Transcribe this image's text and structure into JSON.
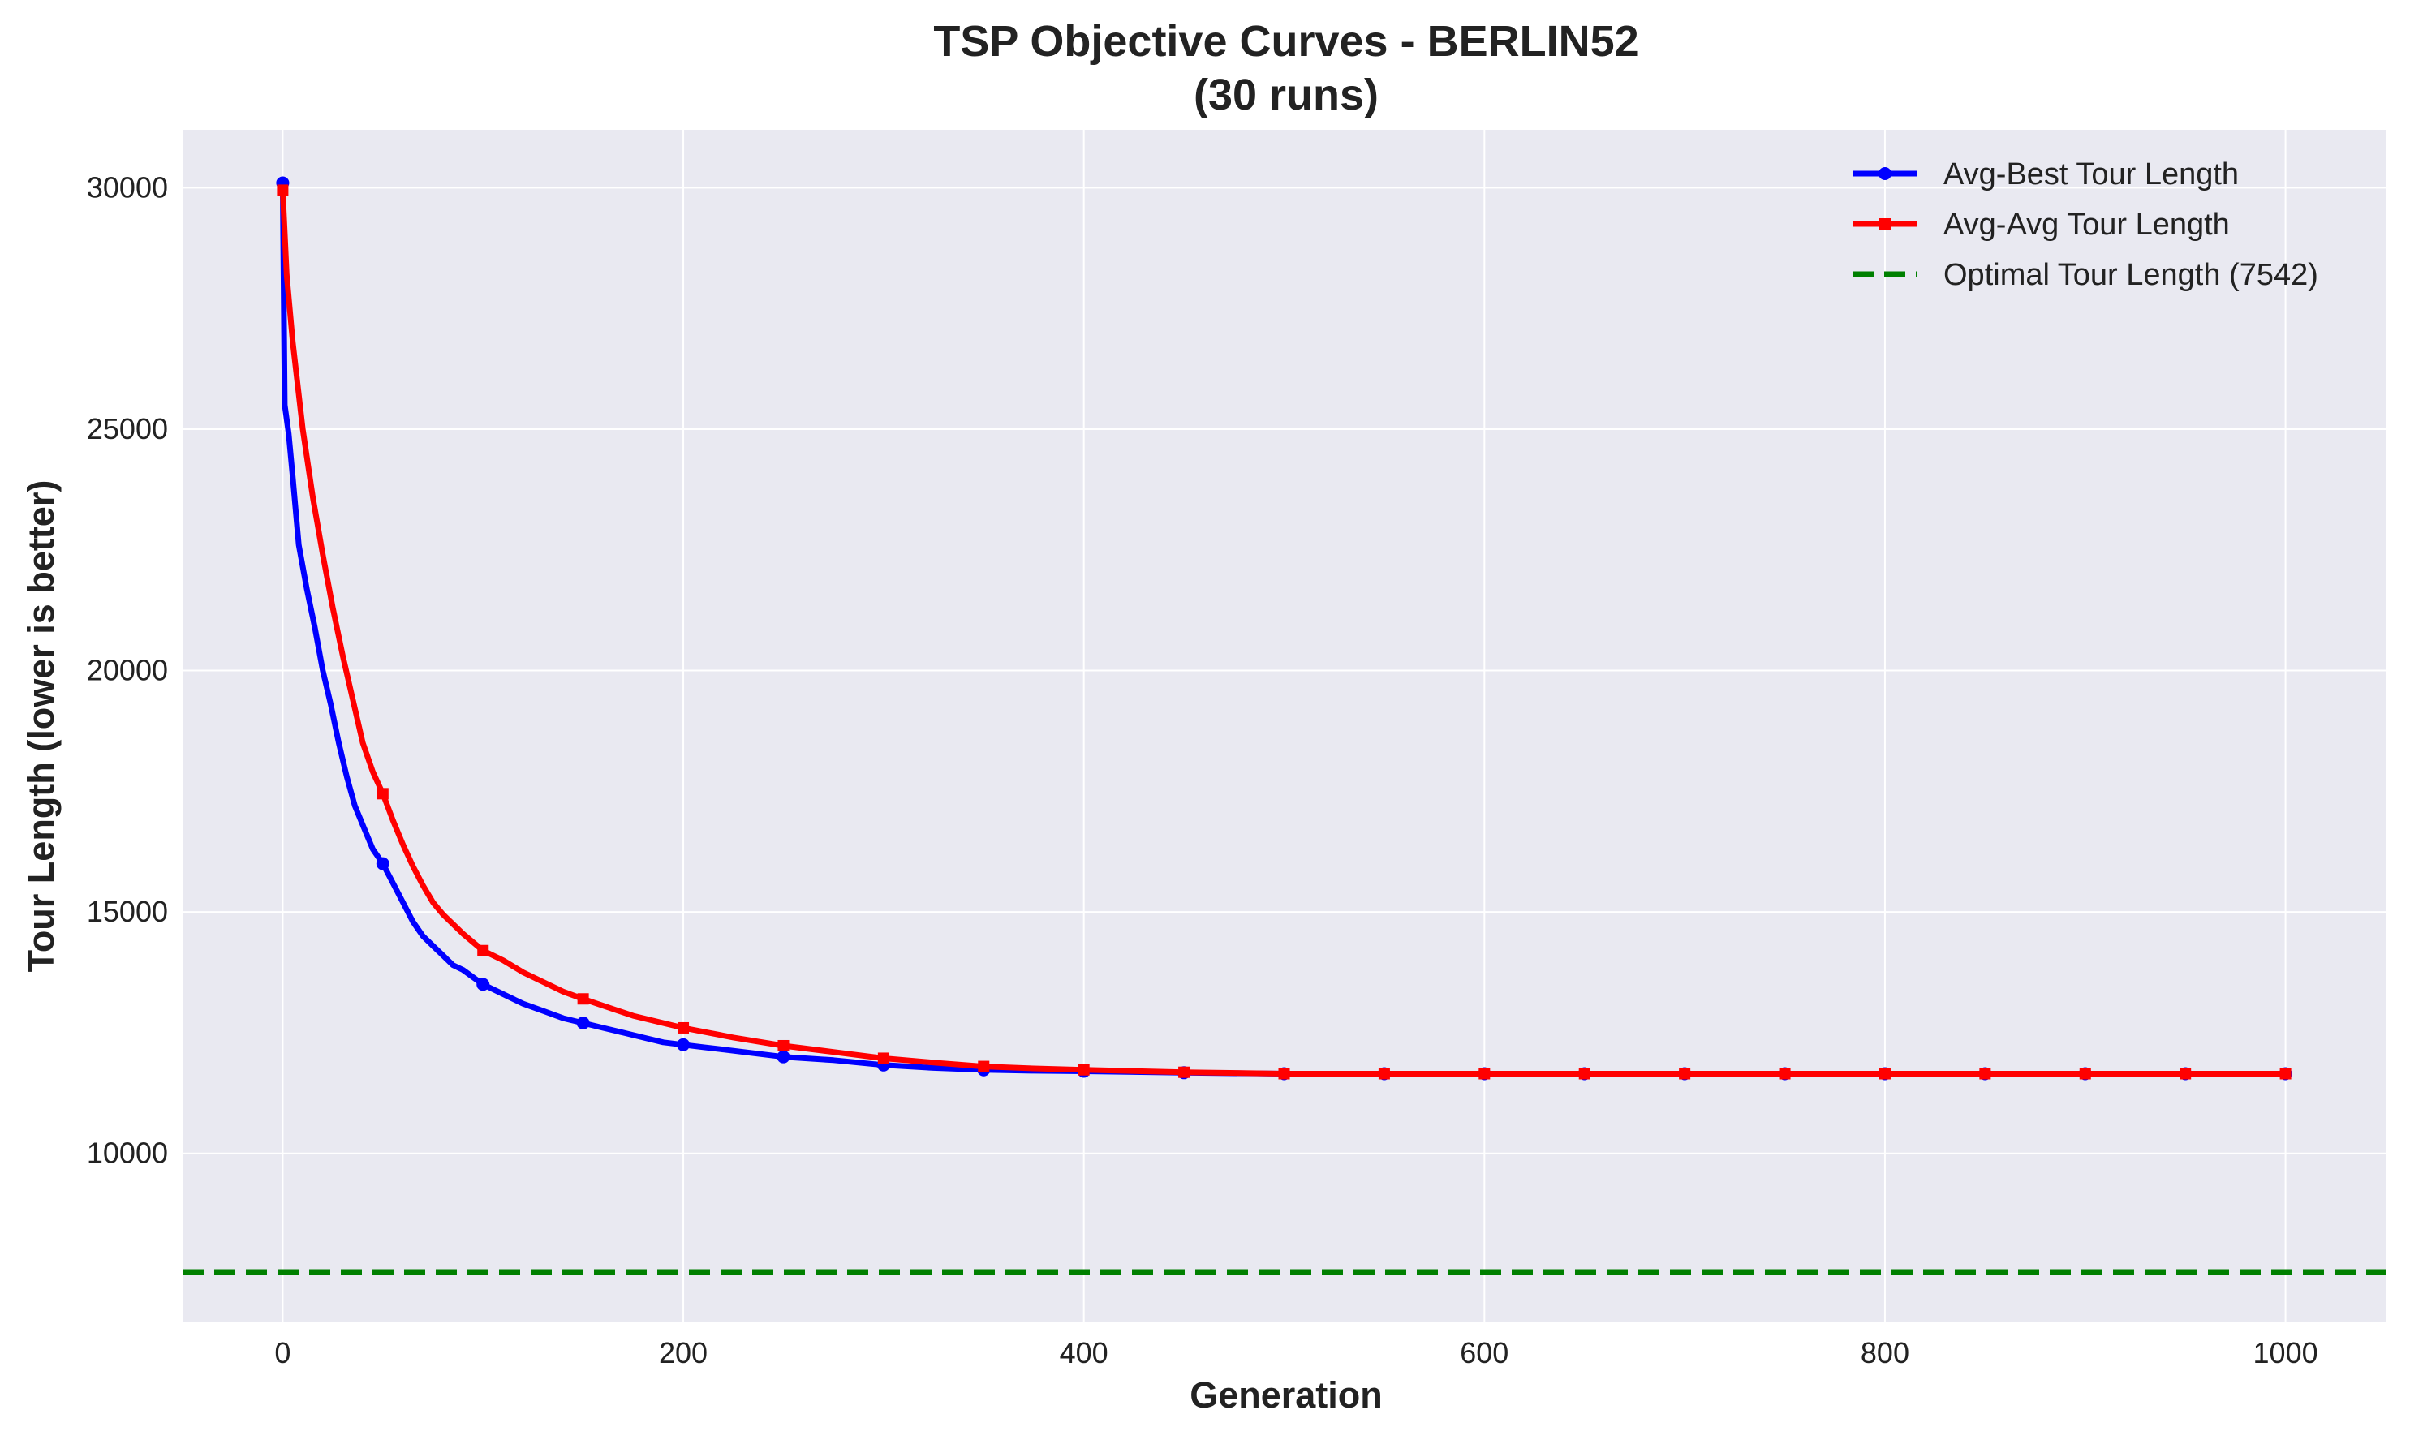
{
  "chart_data": {
    "type": "line",
    "title": "TSP Objective Curves - BERLIN52",
    "subtitle": "(30 runs)",
    "xlabel": "Generation",
    "ylabel": "Tour Length (lower is better)",
    "xlim": [
      -50,
      1050
    ],
    "ylim": [
      6500,
      31200
    ],
    "xticks": [
      0,
      200,
      400,
      600,
      800,
      1000
    ],
    "yticks": [
      10000,
      15000,
      20000,
      25000,
      30000
    ],
    "grid": true,
    "legend_position": "top-right",
    "plot_background": "#e9e9f1",
    "series": [
      {
        "name": "Avg-Best Tour Length",
        "color": "#0000ff",
        "marker": "circle",
        "x": [
          0,
          1,
          3,
          5,
          8,
          12,
          16,
          20,
          24,
          28,
          32,
          36,
          40,
          45,
          50,
          55,
          60,
          65,
          70,
          75,
          80,
          85,
          90,
          95,
          100,
          110,
          120,
          130,
          140,
          150,
          160,
          170,
          180,
          190,
          200,
          210,
          220,
          230,
          240,
          250,
          275,
          300,
          325,
          350,
          375,
          400,
          450,
          500,
          550,
          600,
          650,
          700,
          750,
          800,
          850,
          900,
          950,
          1000
        ],
        "y": [
          30100,
          25500,
          24900,
          24000,
          22600,
          21700,
          20900,
          20000,
          19300,
          18500,
          17800,
          17200,
          16800,
          16300,
          16000,
          15600,
          15200,
          14800,
          14500,
          14300,
          14100,
          13900,
          13800,
          13650,
          13500,
          13300,
          13100,
          12950,
          12800,
          12700,
          12600,
          12500,
          12400,
          12300,
          12250,
          12200,
          12150,
          12100,
          12050,
          12000,
          11930,
          11830,
          11770,
          11730,
          11710,
          11700,
          11670,
          11650,
          11650,
          11650,
          11650,
          11650,
          11650,
          11650,
          11650,
          11650,
          11650,
          11650
        ],
        "marker_x": [
          0,
          50,
          100,
          150,
          200,
          250,
          300,
          350,
          400,
          450,
          500,
          550,
          600,
          650,
          700,
          750,
          800,
          850,
          900,
          950,
          1000
        ]
      },
      {
        "name": "Avg-Avg Tour Length",
        "color": "#ff0000",
        "marker": "square",
        "x": [
          0,
          2,
          5,
          10,
          15,
          20,
          25,
          30,
          35,
          40,
          45,
          50,
          55,
          60,
          65,
          70,
          75,
          80,
          90,
          100,
          110,
          120,
          130,
          140,
          150,
          175,
          200,
          225,
          250,
          275,
          300,
          325,
          350,
          375,
          400,
          450,
          500,
          550,
          600,
          650,
          700,
          750,
          800,
          850,
          900,
          950,
          1000
        ],
        "y": [
          29950,
          28200,
          26800,
          25000,
          23600,
          22400,
          21300,
          20300,
          19400,
          18500,
          17900,
          17450,
          16900,
          16400,
          15950,
          15550,
          15200,
          14950,
          14550,
          14200,
          14000,
          13750,
          13550,
          13350,
          13200,
          12850,
          12600,
          12400,
          12230,
          12100,
          11970,
          11880,
          11800,
          11760,
          11730,
          11680,
          11650,
          11650,
          11650,
          11650,
          11650,
          11650,
          11650,
          11650,
          11650,
          11650,
          11650
        ],
        "marker_x": [
          0,
          50,
          100,
          150,
          200,
          250,
          300,
          350,
          400,
          450,
          500,
          550,
          600,
          650,
          700,
          750,
          800,
          850,
          900,
          950,
          1000
        ]
      },
      {
        "name": "Optimal Tour Length (7542)",
        "color": "#008000",
        "style": "dashed",
        "y_constant": 7542
      }
    ]
  }
}
